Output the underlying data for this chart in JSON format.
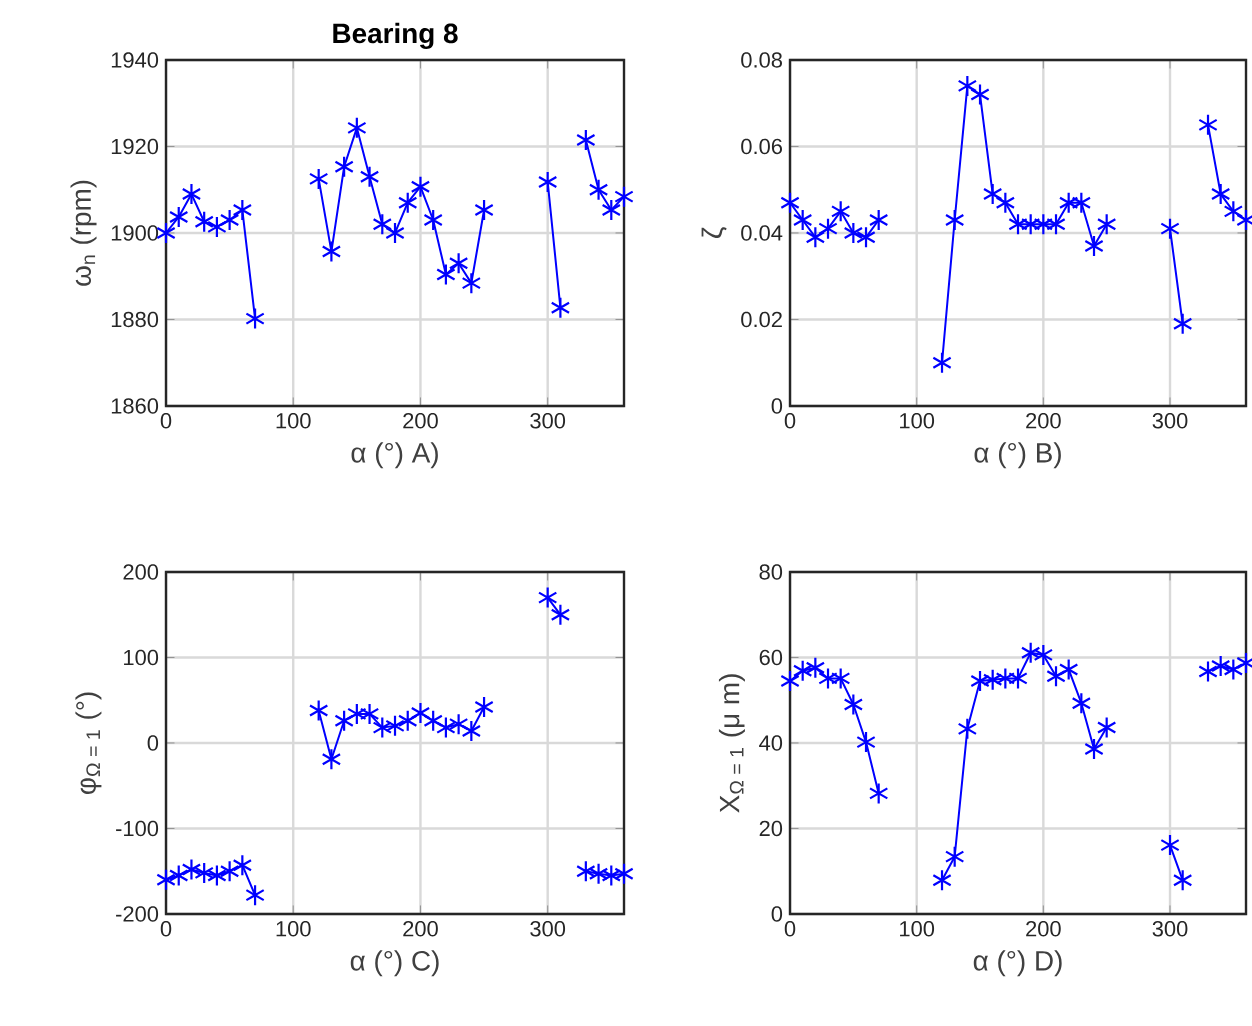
{
  "chart_data": [
    {
      "type": "line",
      "title": "Bearing 8",
      "xlabel": "α (°)    A)",
      "ylabel": "ω$_{n}$ (rpm)",
      "color": "#0000ff",
      "marker": "cross",
      "line_style": "solid",
      "grid": true,
      "x": [
        0,
        10,
        20,
        30,
        40,
        50,
        60,
        70,
        80,
        90,
        100,
        110,
        120,
        130,
        140,
        150,
        160,
        170,
        180,
        190,
        200,
        210,
        220,
        230,
        240,
        250,
        260,
        270,
        280,
        290,
        300,
        310,
        320,
        330,
        340,
        350,
        360
      ],
      "values": [
        1900,
        1903.7,
        1909,
        1902.6,
        1901.4,
        1903,
        1905.3,
        1880.2,
        null,
        null,
        null,
        null,
        1912.5,
        1895.7,
        1915.3,
        1924.3,
        1913,
        1902,
        1900,
        1907,
        1910.7,
        1903,
        1890.4,
        1893,
        1888.4,
        1905.3,
        null,
        null,
        null,
        null,
        1911.8,
        1882.7,
        null,
        1921.5,
        1910,
        1905.3,
        1908.4
      ],
      "xlim": [
        0,
        360
      ],
      "ylim": [
        1860,
        1940
      ],
      "xticks": [
        0,
        100,
        200,
        300
      ],
      "yticks": [
        1860,
        1880,
        1900,
        1920,
        1940
      ]
    },
    {
      "type": "line",
      "xlabel": "α (°)    B)",
      "ylabel": "ζ",
      "color": "#0000ff",
      "marker": "cross",
      "line_style": "solid",
      "grid": true,
      "x": [
        0,
        10,
        20,
        30,
        40,
        50,
        60,
        70,
        80,
        90,
        100,
        110,
        120,
        130,
        140,
        150,
        160,
        170,
        180,
        190,
        200,
        210,
        220,
        230,
        240,
        250,
        260,
        270,
        280,
        290,
        300,
        310,
        320,
        330,
        340,
        350,
        360
      ],
      "values": [
        0.047,
        0.043,
        0.039,
        0.041,
        0.045,
        0.04,
        0.039,
        0.043,
        null,
        null,
        null,
        null,
        0.01,
        0.043,
        0.074,
        0.072,
        0.049,
        0.047,
        0.042,
        0.042,
        0.042,
        0.042,
        0.047,
        0.047,
        0.037,
        0.042,
        null,
        null,
        null,
        null,
        0.041,
        0.019,
        null,
        0.065,
        0.049,
        0.045,
        0.043
      ],
      "xlim": [
        0,
        360
      ],
      "ylim": [
        0,
        0.08
      ],
      "xticks": [
        0,
        100,
        200,
        300
      ],
      "yticks": [
        0,
        0.02,
        0.04,
        0.06,
        0.08
      ]
    },
    {
      "type": "line",
      "xlabel": "α (°)    C)",
      "ylabel": "φ$_{Ω = 1}$ (°)",
      "color": "#0000ff",
      "marker": "cross",
      "line_style": "solid",
      "grid": true,
      "x": [
        0,
        10,
        20,
        30,
        40,
        50,
        60,
        70,
        80,
        90,
        100,
        110,
        120,
        130,
        140,
        150,
        160,
        170,
        180,
        190,
        200,
        210,
        220,
        230,
        240,
        250,
        260,
        270,
        280,
        290,
        300,
        310,
        320,
        330,
        340,
        350,
        360
      ],
      "values": [
        -160,
        -155,
        -148,
        -152,
        -155,
        -150,
        -143,
        -178,
        null,
        null,
        null,
        null,
        38,
        -19,
        26,
        34,
        34,
        18,
        20,
        26,
        35,
        26,
        18,
        22,
        14,
        42,
        null,
        null,
        null,
        null,
        170,
        150,
        null,
        -150,
        -153,
        -155,
        -153
      ],
      "xlim": [
        0,
        360
      ],
      "ylim": [
        -200,
        200
      ],
      "xticks": [
        0,
        100,
        200,
        300
      ],
      "yticks": [
        -200,
        -100,
        0,
        100,
        200
      ]
    },
    {
      "type": "line",
      "xlabel": "α (°)    D)",
      "ylabel": "X$_{Ω = 1}$ (μ m)",
      "color": "#0000ff",
      "marker": "cross",
      "line_style": "solid",
      "grid": true,
      "x": [
        0,
        10,
        20,
        30,
        40,
        50,
        60,
        70,
        80,
        90,
        100,
        110,
        120,
        130,
        140,
        150,
        160,
        170,
        180,
        190,
        200,
        210,
        220,
        230,
        240,
        250,
        260,
        270,
        280,
        290,
        300,
        310,
        320,
        330,
        340,
        350,
        360
      ],
      "values": [
        54.5,
        56.9,
        57.6,
        55.1,
        55.1,
        49,
        40.2,
        28.2,
        null,
        null,
        null,
        null,
        7.9,
        13.4,
        43.3,
        54.5,
        54.8,
        55.1,
        55.1,
        61.1,
        60.6,
        55.6,
        57.2,
        49.3,
        38.6,
        43.6,
        null,
        null,
        null,
        null,
        16.1,
        7.9,
        null,
        56.7,
        58,
        57.2,
        58.7
      ],
      "xlim": [
        0,
        360
      ],
      "ylim": [
        0,
        80
      ],
      "xticks": [
        0,
        100,
        200,
        300
      ],
      "yticks": [
        0,
        20,
        40,
        60,
        80
      ]
    }
  ]
}
